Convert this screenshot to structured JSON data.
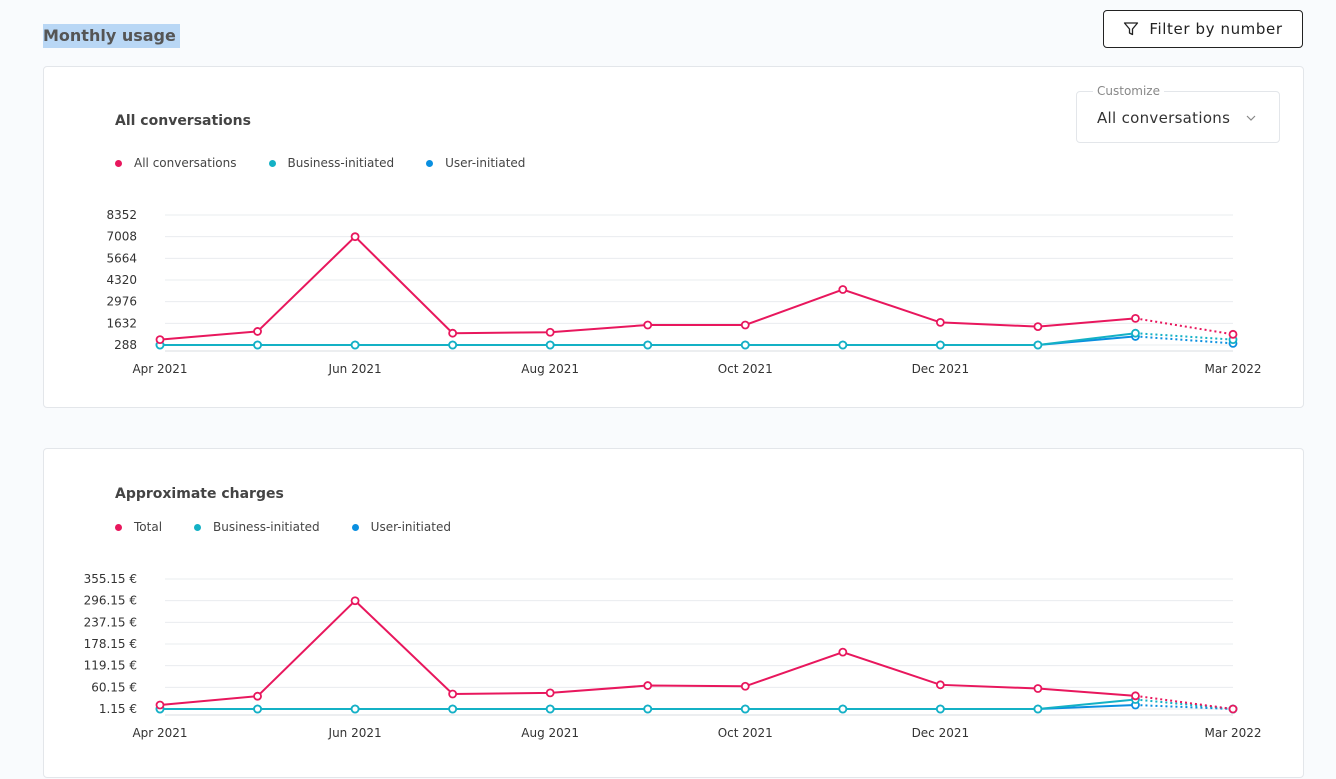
{
  "page": {
    "title": "Monthly usage"
  },
  "filter": {
    "label": "Filter by number"
  },
  "customize": {
    "label": "Customize",
    "value": "All conversations"
  },
  "colors": {
    "total": "#e8175d",
    "business": "#14b1c5",
    "user": "#0a8fe0"
  },
  "chart_data": [
    {
      "type": "line",
      "title": "All conversations",
      "xlabel": "",
      "ylabel": "",
      "x_tick_labels": [
        "Apr 2021",
        "Jun 2021",
        "Aug 2021",
        "Oct 2021",
        "Dec 2021",
        "Mar 2022"
      ],
      "categories": [
        "Apr 2021",
        "May 2021",
        "Jun 2021",
        "Jul 2021",
        "Aug 2021",
        "Sep 2021",
        "Oct 2021",
        "Nov 2021",
        "Dec 2021",
        "Jan 2022",
        "Feb 2022",
        "Mar 2022"
      ],
      "y_ticks": [
        "8352",
        "7008",
        "5664",
        "4320",
        "2976",
        "1632",
        "288"
      ],
      "ylim": [
        0,
        8352
      ],
      "dotted_from_index": 10,
      "grid": true,
      "legend_position": "top-left",
      "series": [
        {
          "name": "All conversations",
          "color_key": "total",
          "values": [
            620,
            1130,
            7008,
            1020,
            1080,
            1530,
            1530,
            3730,
            1690,
            1430,
            1940,
            950
          ]
        },
        {
          "name": "Business-initiated",
          "color_key": "business",
          "values": [
            288,
            288,
            288,
            288,
            288,
            288,
            288,
            288,
            288,
            288,
            1020,
            620
          ]
        },
        {
          "name": "User-initiated",
          "color_key": "user",
          "values": [
            288,
            288,
            288,
            288,
            288,
            288,
            288,
            288,
            288,
            288,
            820,
            390
          ]
        }
      ]
    },
    {
      "type": "line",
      "title": "Approximate charges",
      "xlabel": "",
      "ylabel": "",
      "x_tick_labels": [
        "Apr 2021",
        "Jun 2021",
        "Aug 2021",
        "Oct 2021",
        "Dec 2021",
        "Mar 2022"
      ],
      "categories": [
        "Apr 2021",
        "May 2021",
        "Jun 2021",
        "Jul 2021",
        "Aug 2021",
        "Sep 2021",
        "Oct 2021",
        "Nov 2021",
        "Dec 2021",
        "Jan 2022",
        "Feb 2022",
        "Mar 2022"
      ],
      "y_ticks": [
        "355.15 €",
        "296.15 €",
        "237.15 €",
        "178.15 €",
        "119.15 €",
        "60.15 €",
        "1.15 €"
      ],
      "ylim": [
        -20,
        355.15
      ],
      "dotted_from_index": 10,
      "grid": true,
      "legend_position": "top-left",
      "series": [
        {
          "name": "Total",
          "color_key": "total",
          "values": [
            12,
            36,
            296,
            42,
            45,
            65,
            63,
            156,
            67,
            57,
            37,
            1.15
          ]
        },
        {
          "name": "Business-initiated",
          "color_key": "business",
          "values": [
            1.15,
            1.15,
            1.15,
            1.15,
            1.15,
            1.15,
            1.15,
            1.15,
            1.15,
            1.15,
            27,
            1.15
          ]
        },
        {
          "name": "User-initiated",
          "color_key": "user",
          "values": [
            1.15,
            1.15,
            1.15,
            1.15,
            1.15,
            1.15,
            1.15,
            1.15,
            1.15,
            1.15,
            12,
            1.15
          ]
        }
      ]
    }
  ]
}
